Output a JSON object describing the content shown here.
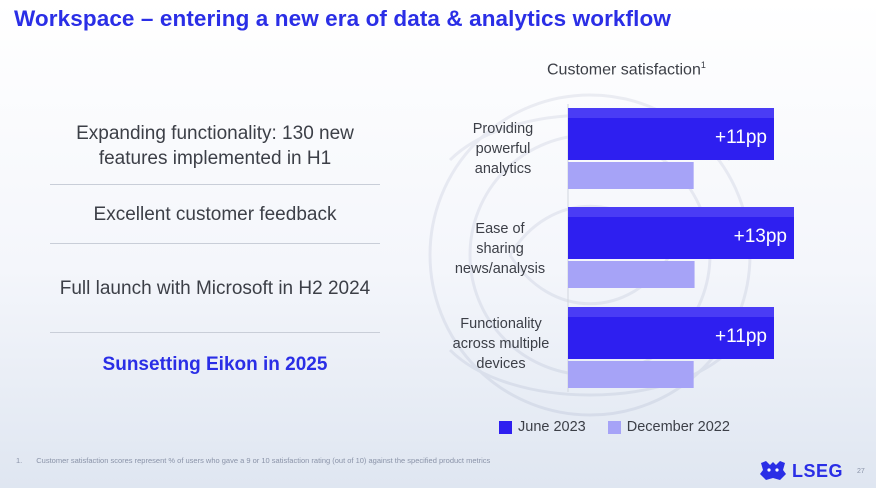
{
  "title": "Workspace – entering a new era of data & analytics workflow",
  "bullets": [
    "Expanding functionality: 130 new features implemented in H1",
    "Excellent customer feedback",
    "Full launch with Microsoft in H2 2024",
    "Sunsetting Eikon in 2025"
  ],
  "chart_title": "Customer satisfaction",
  "chart_title_footnote_mark": "1",
  "chart_data": {
    "type": "bar",
    "orientation": "horizontal",
    "title": "Customer satisfaction",
    "categories": [
      "Providing powerful analytics",
      "Ease of sharing news/analysis",
      "Functionality across multiple devices"
    ],
    "series": [
      {
        "name": "June 2023",
        "color": "#2e1ff0",
        "relative_values": [
          1.0,
          1.0,
          1.0
        ]
      },
      {
        "name": "December 2022",
        "color": "#a6a3f7",
        "relative_values": [
          0.61,
          0.56,
          0.61
        ]
      }
    ],
    "data_labels": [
      "+11pp",
      "+13pp",
      "+11pp"
    ],
    "legend_position": "bottom",
    "grid": false
  },
  "category_lines": [
    [
      "Providing",
      "powerful",
      "analytics"
    ],
    [
      "Ease of",
      "sharing",
      "news/analysis"
    ],
    [
      "Functionality",
      "across multiple",
      "devices"
    ]
  ],
  "footnote_number": "1.",
  "footnote": "Customer satisfaction scores represent % of users who gave a 9 or 10 satisfaction rating (out of 10) against the specified product metrics",
  "logo_text": "LSEG",
  "page_number": "27",
  "colors": {
    "accent": "#2a2ee6",
    "bar_primary": "#2e1ff0",
    "bar_secondary": "#a6a3f7"
  }
}
